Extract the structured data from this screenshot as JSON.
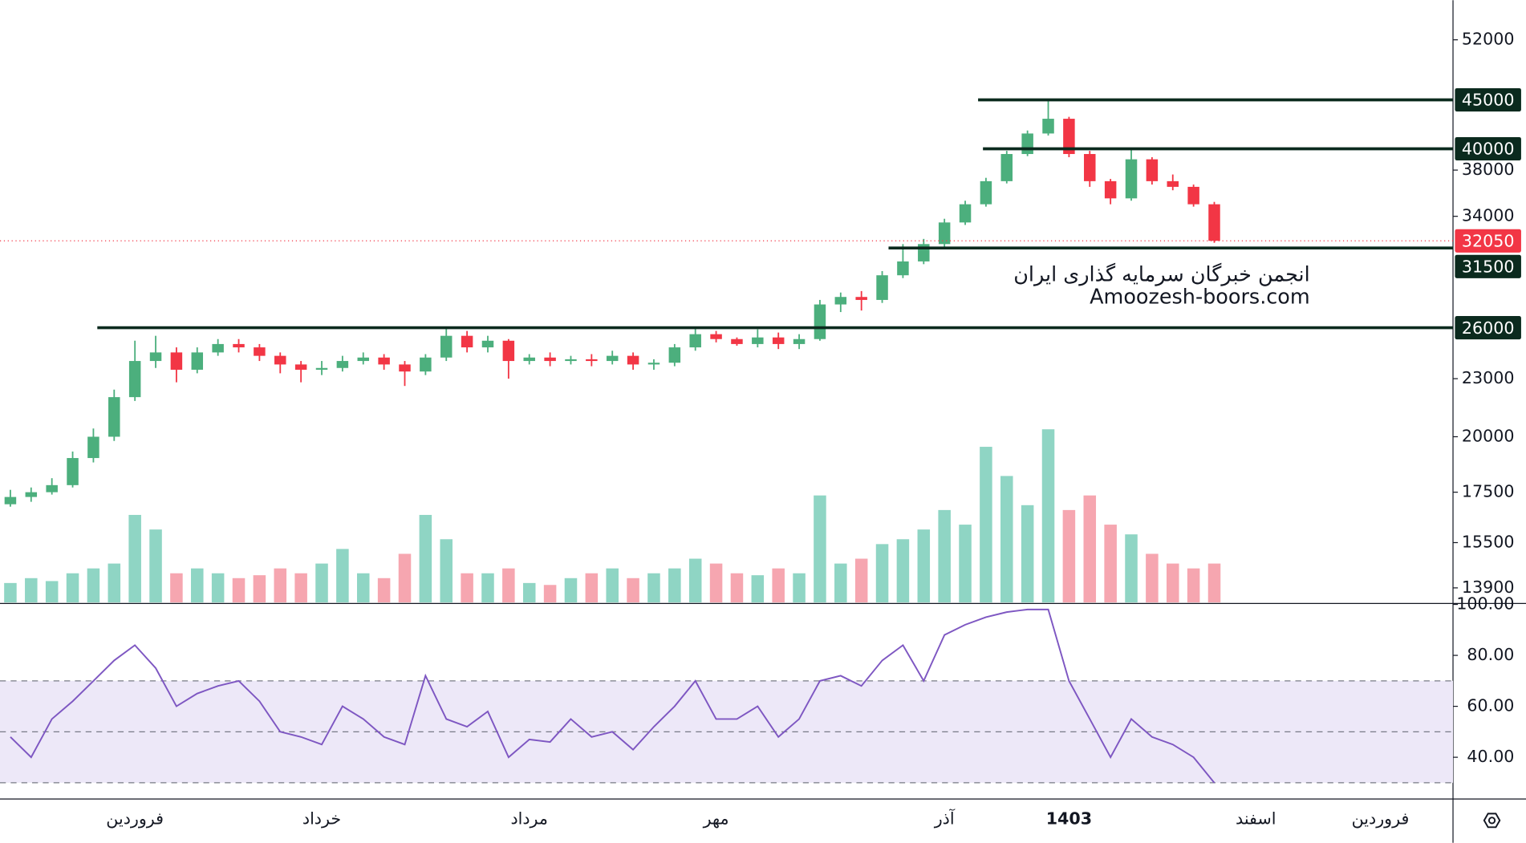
{
  "chart_data": {
    "type": "candlestick",
    "log_scale": true,
    "categories": [
      null,
      null,
      null,
      null,
      null,
      null,
      "فروردین",
      null,
      null,
      null,
      null,
      null,
      null,
      null,
      null,
      "خرداد",
      null,
      null,
      null,
      null,
      null,
      null,
      null,
      null,
      null,
      "مرداد",
      null,
      null,
      null,
      null,
      null,
      null,
      null,
      null,
      "مهر",
      null,
      null,
      null,
      null,
      null,
      null,
      null,
      null,
      null,
      null,
      "آذر",
      null,
      null,
      null,
      null,
      null,
      "1403",
      null,
      null,
      null,
      null,
      null,
      null,
      null,
      null,
      "اسفند",
      null,
      null,
      null,
      null,
      null,
      "فروردین",
      null,
      null,
      null
    ],
    "open": [
      17000,
      17300,
      17500,
      17800,
      19000,
      20000,
      22000,
      24000,
      24500,
      23500,
      24500,
      25000,
      24800,
      24300,
      23800,
      23500,
      23600,
      24000,
      24200,
      23800,
      23400,
      24200,
      25500,
      24800,
      25200,
      24000,
      24200,
      24000,
      24100,
      24000,
      24300,
      23800,
      23900,
      24800,
      25600,
      25300,
      25000,
      25400,
      25000,
      25300,
      27500,
      28000,
      27800,
      29500,
      30500,
      31800,
      33500,
      35000,
      37000,
      39500,
      41500,
      43000,
      39500,
      37000,
      35500,
      39000,
      37000,
      36500,
      35000,
      null,
      null,
      null,
      null,
      null,
      null,
      null,
      null,
      null,
      null,
      null
    ],
    "high": [
      17600,
      17700,
      18100,
      19300,
      20400,
      22400,
      25200,
      25500,
      24800,
      24800,
      25300,
      25300,
      25000,
      24500,
      24000,
      24000,
      24300,
      24500,
      24400,
      24000,
      24400,
      26000,
      25800,
      25500,
      25300,
      24400,
      24500,
      24300,
      24400,
      24600,
      24500,
      24100,
      25000,
      26000,
      25800,
      25400,
      25900,
      25700,
      25600,
      27800,
      28300,
      28400,
      29800,
      31800,
      32200,
      33800,
      35300,
      37300,
      39800,
      41800,
      45000,
      43200,
      39800,
      37200,
      40000,
      39200,
      37600,
      36700,
      35200,
      null,
      null,
      null,
      null,
      null,
      null,
      null,
      null,
      null,
      null,
      null
    ],
    "low": [
      16900,
      17100,
      17400,
      17700,
      18800,
      19800,
      21800,
      23600,
      22800,
      23300,
      24300,
      24500,
      24000,
      23300,
      22800,
      23200,
      23400,
      23800,
      23500,
      22600,
      23200,
      24000,
      24500,
      24500,
      23000,
      23800,
      23700,
      23800,
      23700,
      23800,
      23500,
      23500,
      23700,
      24600,
      25100,
      24900,
      24800,
      24700,
      24700,
      25200,
      27000,
      27100,
      27600,
      29300,
      30300,
      31600,
      33300,
      34800,
      36800,
      39300,
      41300,
      39200,
      36500,
      35000,
      35300,
      36700,
      36200,
      34800,
      31900,
      null,
      null,
      null,
      null,
      null,
      null,
      null,
      null,
      null,
      null,
      null
    ],
    "close": [
      17300,
      17500,
      17800,
      19000,
      20000,
      22000,
      24000,
      24500,
      23500,
      24500,
      25000,
      24800,
      24300,
      23800,
      23500,
      23600,
      24000,
      24200,
      23800,
      23400,
      24200,
      25500,
      24800,
      25200,
      24000,
      24200,
      24000,
      24100,
      24000,
      24300,
      23800,
      23900,
      24800,
      25600,
      25300,
      25000,
      25400,
      25000,
      25300,
      27500,
      28000,
      27800,
      29500,
      30500,
      31800,
      33500,
      35000,
      37000,
      39500,
      41500,
      43000,
      39500,
      37000,
      35500,
      39000,
      37000,
      36500,
      35000,
      32050,
      null,
      null,
      null,
      null,
      null,
      null,
      null,
      null,
      null,
      null,
      null
    ],
    "up_color": "#4caf7d",
    "down_color": "#f23645",
    "ylim": [
      13420,
      57200
    ],
    "yticks": [
      13900,
      15500,
      17500,
      20000,
      23000,
      34000,
      38000,
      52000
    ],
    "levels": [
      45000,
      40000,
      31500,
      26000
    ],
    "level_color": "#0b2a1e",
    "last_price": 32050,
    "watermark": [
      "انجمن خبرگان سرمایه گذاری ایران",
      "Amoozesh-boors.com"
    ],
    "volume": {
      "values": [
        20,
        25,
        22,
        30,
        35,
        40,
        90,
        75,
        30,
        35,
        30,
        25,
        28,
        35,
        30,
        40,
        55,
        30,
        25,
        50,
        90,
        65,
        30,
        30,
        35,
        20,
        18,
        25,
        30,
        35,
        25,
        30,
        35,
        45,
        40,
        30,
        28,
        35,
        30,
        110,
        40,
        45,
        60,
        65,
        75,
        95,
        80,
        160,
        130,
        100,
        178,
        95,
        110,
        80,
        70,
        50,
        40,
        35,
        40,
        null,
        null,
        null,
        null,
        null,
        null,
        null,
        null,
        null,
        null,
        null
      ],
      "ylim": [
        0,
        180
      ],
      "up_color": "#8fd5c4",
      "down_color": "#f6a6b0"
    },
    "rsi": {
      "values": [
        48,
        40,
        55,
        62,
        70,
        78,
        84,
        75,
        60,
        65,
        68,
        70,
        62,
        50,
        48,
        45,
        60,
        55,
        48,
        45,
        72,
        55,
        52,
        58,
        40,
        47,
        46,
        55,
        48,
        50,
        43,
        52,
        60,
        70,
        55,
        55,
        60,
        48,
        55,
        70,
        72,
        68,
        78,
        84,
        70,
        88,
        92,
        95,
        97,
        98,
        98,
        70,
        55,
        40,
        55,
        48,
        45,
        40,
        30,
        null,
        null,
        null,
        null,
        null,
        null,
        null,
        null,
        null,
        null,
        null
      ],
      "color": "#7e57c2",
      "ylim": [
        24,
        100
      ],
      "yticks": [
        {
          "value": 40,
          "label": "40.00"
        },
        {
          "value": 60,
          "label": "60.00"
        },
        {
          "value": 80,
          "label": "80.00"
        },
        {
          "value": 100,
          "label": "100.00"
        }
      ],
      "bands": [
        30,
        50,
        70
      ],
      "band_color": "#ede8f8"
    }
  }
}
